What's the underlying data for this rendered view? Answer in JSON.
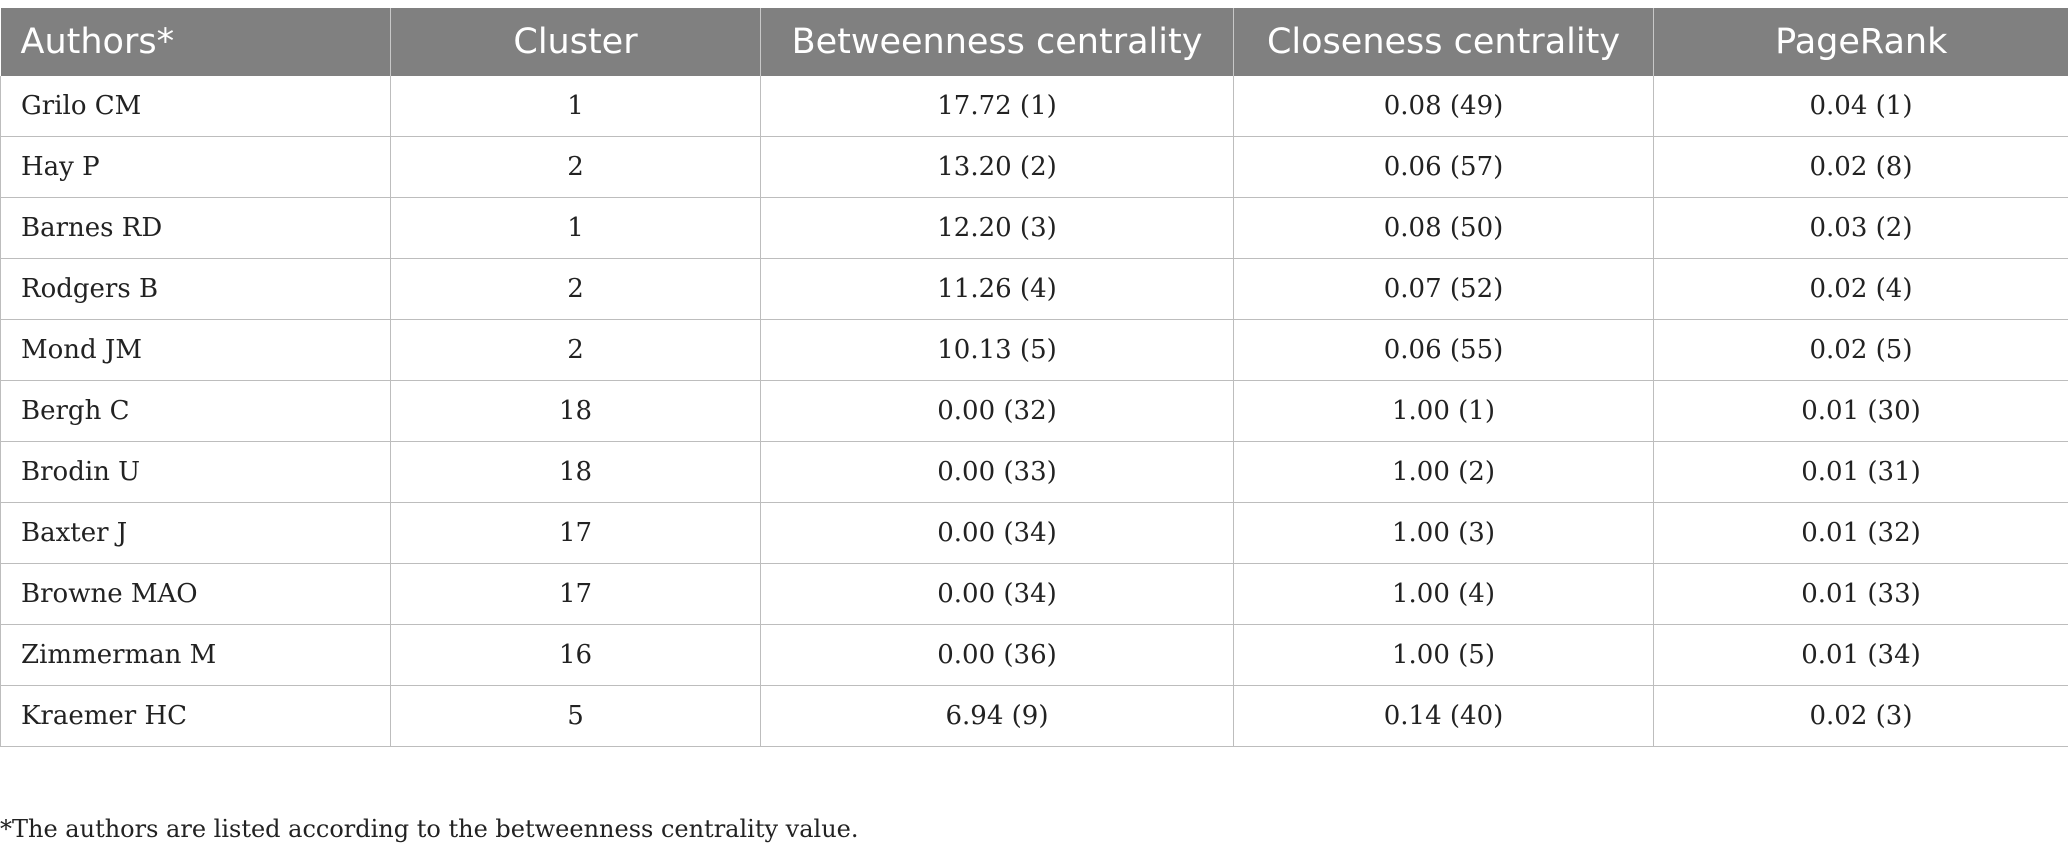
{
  "table": {
    "headers": [
      "Authors*",
      "Cluster",
      "Betweenness centrality",
      "Closeness centrality",
      "PageRank"
    ],
    "rows": [
      [
        "Grilo CM",
        "1",
        "17.72 (1)",
        "0.08 (49)",
        "0.04 (1)"
      ],
      [
        "Hay P",
        "2",
        "13.20 (2)",
        "0.06 (57)",
        "0.02 (8)"
      ],
      [
        "Barnes RD",
        "1",
        "12.20 (3)",
        "0.08 (50)",
        "0.03 (2)"
      ],
      [
        "Rodgers B",
        "2",
        "11.26 (4)",
        "0.07 (52)",
        "0.02 (4)"
      ],
      [
        "Mond JM",
        "2",
        "10.13 (5)",
        "0.06 (55)",
        "0.02 (5)"
      ],
      [
        "Bergh C",
        "18",
        "0.00 (32)",
        "1.00 (1)",
        "0.01 (30)"
      ],
      [
        "Brodin U",
        "18",
        "0.00 (33)",
        "1.00 (2)",
        "0.01 (31)"
      ],
      [
        "Baxter J",
        "17",
        "0.00 (34)",
        "1.00 (3)",
        "0.01 (32)"
      ],
      [
        "Browne MAO",
        "17",
        "0.00 (34)",
        "1.00 (4)",
        "0.01 (33)"
      ],
      [
        "Zimmerman M",
        "16",
        "0.00 (36)",
        "1.00 (5)",
        "0.01 (34)"
      ],
      [
        "Kraemer HC",
        "5",
        "6.94 (9)",
        "0.14 (40)",
        "0.02 (3)"
      ]
    ]
  },
  "footnote": "*The authors are listed according to the betweenness centrality value.",
  "colors": {
    "header_bg": "#808080",
    "header_text": "#ffffff",
    "border": "#bdbdbd"
  }
}
